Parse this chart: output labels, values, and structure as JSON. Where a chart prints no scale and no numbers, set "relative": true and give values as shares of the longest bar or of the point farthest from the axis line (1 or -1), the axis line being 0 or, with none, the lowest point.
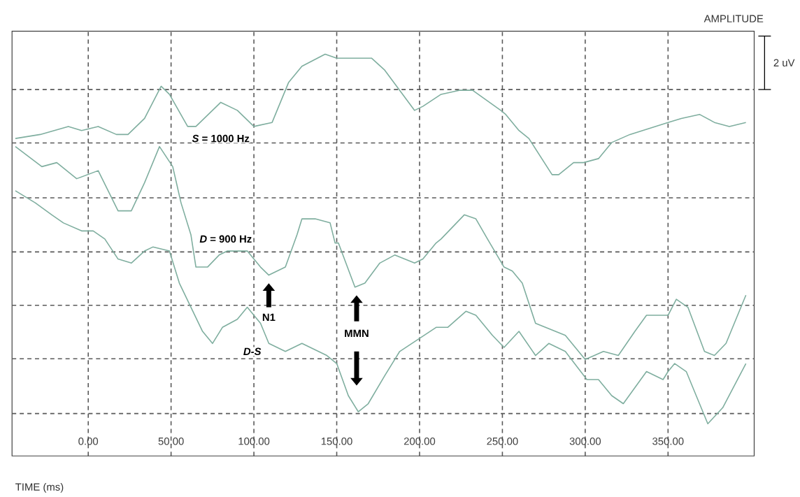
{
  "chart_data": {
    "type": "line",
    "relative": true,
    "xlabel": "TIME (ms)",
    "ylabel": "AMPLITUDE",
    "xlim": [
      -46,
      402
    ],
    "xticks": [
      {
        "value": 0,
        "label": "0.00"
      },
      {
        "value": 50,
        "label": "50.00"
      },
      {
        "value": 100,
        "label": "100.00"
      },
      {
        "value": 150,
        "label": "150.00"
      },
      {
        "value": 200,
        "label": "200.00"
      },
      {
        "value": 250,
        "label": "250.00"
      },
      {
        "value": 300,
        "label": "300.00"
      },
      {
        "value": 350,
        "label": "350.00"
      }
    ],
    "grid": true,
    "marker": "none",
    "line_style": "solid",
    "series": [
      {
        "name": "*S* = 1000 Hz",
        "color": "#7fae9f",
        "x": [
          -44,
          -29,
          -12,
          -4,
          6,
          17,
          24,
          34,
          44,
          49,
          60,
          65,
          80,
          90,
          100,
          111,
          121,
          129,
          143,
          150,
          155,
          164,
          171,
          179,
          188,
          197,
          202,
          213,
          224,
          232,
          249,
          252,
          260,
          266,
          280,
          284,
          293,
          299,
          308,
          316,
          327,
          350,
          358,
          369,
          378,
          387,
          397
        ],
        "values": [
          0.79,
          0.8,
          0.82,
          0.81,
          0.82,
          0.8,
          0.8,
          0.84,
          0.92,
          0.9,
          0.82,
          0.82,
          0.88,
          0.86,
          0.82,
          0.83,
          0.93,
          0.97,
          1.0,
          0.99,
          0.99,
          0.99,
          0.99,
          0.96,
          0.91,
          0.86,
          0.87,
          0.9,
          0.91,
          0.91,
          0.86,
          0.85,
          0.81,
          0.79,
          0.7,
          0.7,
          0.73,
          0.73,
          0.74,
          0.78,
          0.8,
          0.83,
          0.84,
          0.85,
          0.83,
          0.82,
          0.83
        ]
      },
      {
        "name": "*D* = 900 Hz",
        "color": "#7fae9f",
        "x": [
          -44,
          -28,
          -19,
          -7,
          6,
          18,
          26,
          34,
          43,
          51,
          56,
          62,
          65,
          72,
          79,
          84,
          96,
          104,
          109,
          119,
          126,
          129,
          137,
          146,
          149,
          151,
          161,
          167,
          176,
          185,
          197,
          202,
          210,
          213,
          227,
          234,
          241,
          251,
          256,
          262,
          270,
          276,
          288,
          300,
          311,
          320,
          330,
          337,
          344,
          350,
          355,
          362,
          372,
          378,
          385,
          397
        ],
        "values": [
          0.77,
          0.72,
          0.73,
          0.69,
          0.71,
          0.61,
          0.61,
          0.68,
          0.77,
          0.72,
          0.63,
          0.55,
          0.47,
          0.47,
          0.5,
          0.51,
          0.51,
          0.47,
          0.45,
          0.47,
          0.55,
          0.59,
          0.59,
          0.58,
          0.53,
          0.53,
          0.42,
          0.43,
          0.48,
          0.5,
          0.48,
          0.49,
          0.53,
          0.54,
          0.6,
          0.59,
          0.54,
          0.47,
          0.46,
          0.43,
          0.33,
          0.32,
          0.3,
          0.24,
          0.26,
          0.25,
          0.31,
          0.35,
          0.35,
          0.35,
          0.39,
          0.37,
          0.26,
          0.25,
          0.28,
          0.4
        ]
      },
      {
        "name": "*D-S*",
        "color": "#7fae9f",
        "x": [
          -44,
          -32,
          -22,
          -15,
          -4,
          3,
          10,
          18,
          26,
          34,
          39,
          49,
          55,
          62,
          69,
          75,
          81,
          90,
          96,
          104,
          109,
          119,
          129,
          144,
          150,
          157,
          163,
          169,
          179,
          188,
          199,
          210,
          217,
          228,
          234,
          244,
          251,
          260,
          270,
          278,
          288,
          301,
          308,
          316,
          323,
          337,
          347,
          350,
          354,
          361,
          368,
          374,
          383,
          397
        ],
        "values": [
          0.66,
          0.63,
          0.6,
          0.58,
          0.56,
          0.56,
          0.54,
          0.49,
          0.48,
          0.51,
          0.52,
          0.51,
          0.43,
          0.37,
          0.31,
          0.28,
          0.32,
          0.34,
          0.37,
          0.33,
          0.28,
          0.26,
          0.28,
          0.25,
          0.23,
          0.15,
          0.11,
          0.13,
          0.2,
          0.26,
          0.29,
          0.32,
          0.32,
          0.36,
          0.35,
          0.3,
          0.27,
          0.31,
          0.25,
          0.28,
          0.26,
          0.19,
          0.19,
          0.15,
          0.13,
          0.21,
          0.19,
          0.21,
          0.23,
          0.21,
          0.14,
          0.08,
          0.12,
          0.23
        ]
      }
    ],
    "annotations": [
      "N1",
      "MMN",
      "2 uV"
    ]
  }
}
